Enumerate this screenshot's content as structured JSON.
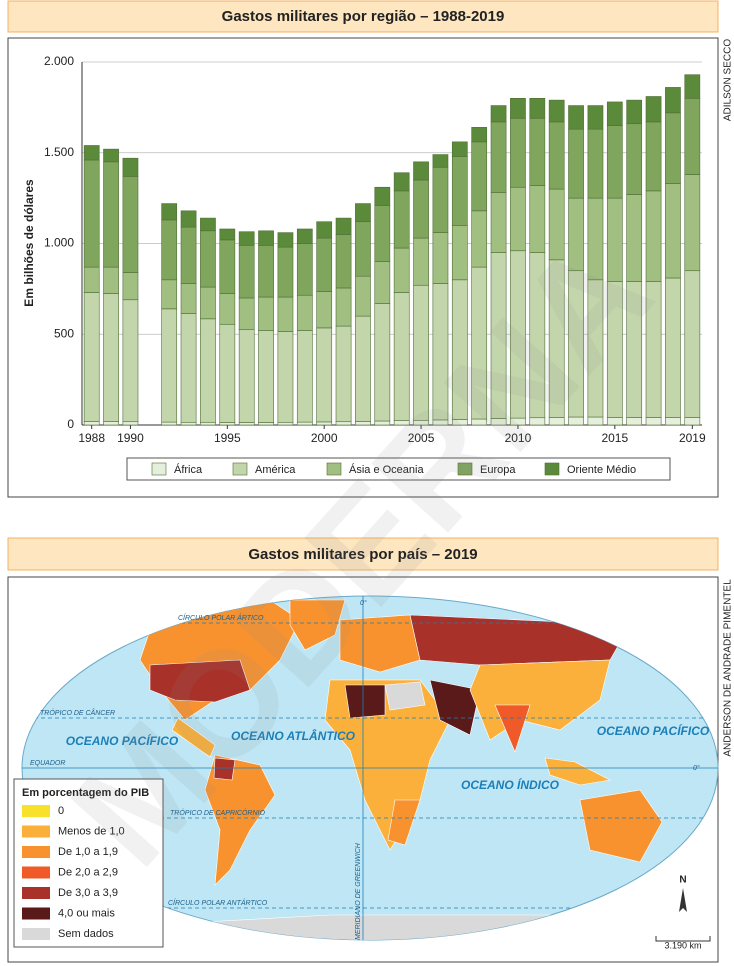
{
  "chart_data": {
    "type": "bar",
    "stacked": true,
    "title": "Gastos militares por região – 1988-2019",
    "y_label": "Em bilhões de dólares",
    "credit": "ADILSON SECCO",
    "watermark": "MODERNA",
    "x": [
      1988,
      1989,
      1990,
      1992,
      1993,
      1994,
      1995,
      1996,
      1997,
      1998,
      1999,
      2000,
      2001,
      2002,
      2003,
      2004,
      2005,
      2006,
      2007,
      2008,
      2009,
      2010,
      2011,
      2012,
      2013,
      2014,
      2015,
      2016,
      2017,
      2018,
      2019
    ],
    "series": [
      {
        "name": "África",
        "color": "#e6efdc",
        "values": [
          20,
          20,
          18,
          16,
          15,
          15,
          14,
          14,
          14,
          15,
          16,
          17,
          18,
          20,
          22,
          24,
          26,
          28,
          30,
          33,
          36,
          38,
          40,
          42,
          44,
          44,
          42,
          41,
          41,
          42,
          41
        ]
      },
      {
        "name": "América",
        "color": "#c3d6ab",
        "values": [
          710,
          705,
          672,
          624,
          600,
          570,
          541,
          511,
          506,
          500,
          504,
          518,
          527,
          580,
          648,
          706,
          744,
          752,
          770,
          837,
          914,
          922,
          910,
          868,
          806,
          756,
          748,
          749,
          749,
          768,
          809
        ]
      },
      {
        "name": "Ásia e Oceania",
        "color": "#a2bf82",
        "values": [
          140,
          145,
          150,
          160,
          165,
          175,
          170,
          175,
          185,
          190,
          195,
          200,
          210,
          220,
          230,
          245,
          260,
          280,
          300,
          310,
          330,
          350,
          370,
          390,
          400,
          450,
          460,
          480,
          500,
          520,
          530
        ]
      },
      {
        "name": "Europa",
        "color": "#80a55d",
        "values": [
          590,
          580,
          530,
          330,
          310,
          310,
          295,
          290,
          285,
          275,
          285,
          295,
          295,
          300,
          310,
          315,
          320,
          360,
          380,
          380,
          390,
          380,
          370,
          370,
          380,
          380,
          400,
          390,
          380,
          390,
          420
        ]
      },
      {
        "name": "Oriente Médio",
        "color": "#5b8a3a",
        "values": [
          80,
          70,
          100,
          90,
          90,
          70,
          60,
          75,
          80,
          80,
          80,
          90,
          90,
          100,
          100,
          100,
          100,
          70,
          80,
          80,
          90,
          110,
          110,
          120,
          130,
          130,
          130,
          130,
          140,
          140,
          130
        ]
      }
    ],
    "xlim": [
      1987.5,
      2019.5
    ],
    "xticks": [
      1988,
      1990,
      1995,
      2000,
      2005,
      2010,
      2015,
      2019
    ],
    "ylim": [
      0,
      2000
    ],
    "yticks": [
      0,
      500,
      {
        "value": 1000,
        "label": "1.000"
      },
      {
        "value": 1500,
        "label": "1.500"
      },
      {
        "value": 2000,
        "label": "2.000"
      }
    ],
    "grid": true
  },
  "map": {
    "title": "Gastos militares por país – 2019",
    "credit": "ANDERSON DE ANDRADE PIMENTEL",
    "legend": {
      "title": "Em porcentagem do PIB",
      "items": [
        {
          "label": "0",
          "color": "#f7e12a"
        },
        {
          "label": "Menos de 1,0",
          "color": "#fbb03b"
        },
        {
          "label": "De 1,0 a 1,9",
          "color": "#f7922f"
        },
        {
          "label": "De 2,0 a 2,9",
          "color": "#ef5a28"
        },
        {
          "label": "De 3,0 a 3,9",
          "color": "#a8322a"
        },
        {
          "label": "4,0 ou mais",
          "color": "#5a1a1a"
        },
        {
          "label": "Sem dados",
          "color": "#d9d9d9"
        }
      ]
    },
    "oceans": [
      "OCEANO PACÍFICO",
      "OCEANO ATLÂNTICO",
      "OCEANO ÍNDICO",
      "OCEANO PACÍFICO"
    ],
    "lines": [
      "CÍRCULO POLAR ÁRTICO",
      "TRÓPICO DE CÂNCER",
      "EQUADOR",
      "TRÓPICO DE CAPRICÓRNIO",
      "CÍRCULO POLAR ANTÁRTICO",
      "MERIDIANO DE GREENWICH"
    ],
    "degree": [
      "0°",
      "0°"
    ],
    "north": "N",
    "scale": "3.190 km"
  }
}
